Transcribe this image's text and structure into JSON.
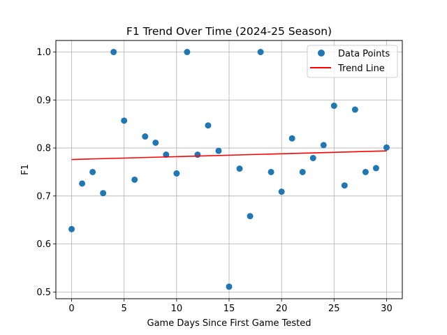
{
  "chart_data": {
    "type": "scatter",
    "title": "F1 Trend Over Time (2024-25 Season)",
    "xlabel": "Game Days Since First Game Tested",
    "ylabel": "F1",
    "xlim": [
      -1.5,
      31.5
    ],
    "ylim": [
      0.486,
      1.024
    ],
    "xticks": [
      0,
      5,
      10,
      15,
      20,
      25,
      30
    ],
    "yticks": [
      0.5,
      0.6,
      0.7,
      0.8,
      0.9,
      1.0
    ],
    "ytick_labels": [
      "0.5",
      "0.6",
      "0.7",
      "0.8",
      "0.9",
      "1.0"
    ],
    "grid": true,
    "legend_position": "top-right",
    "series": [
      {
        "name": "Data Points",
        "kind": "scatter",
        "color": "#1f77b4",
        "x": [
          0,
          1,
          2,
          3,
          4,
          5,
          6,
          7,
          8,
          9,
          10,
          11,
          12,
          13,
          14,
          15,
          16,
          17,
          18,
          19,
          20,
          21,
          22,
          23,
          24,
          25,
          26,
          27,
          28,
          29,
          30
        ],
        "y": [
          0.631,
          0.726,
          0.75,
          0.706,
          1.0,
          0.857,
          0.734,
          0.824,
          0.811,
          0.786,
          0.747,
          1.0,
          0.786,
          0.847,
          0.794,
          0.511,
          0.757,
          0.658,
          1.0,
          0.75,
          0.709,
          0.82,
          0.75,
          0.779,
          0.806,
          0.888,
          0.722,
          0.88,
          0.75,
          0.758,
          0.801
        ]
      },
      {
        "name": "Trend Line",
        "kind": "line",
        "color": "#ff0000",
        "x": [
          0,
          30
        ],
        "y": [
          0.776,
          0.794
        ]
      }
    ]
  }
}
